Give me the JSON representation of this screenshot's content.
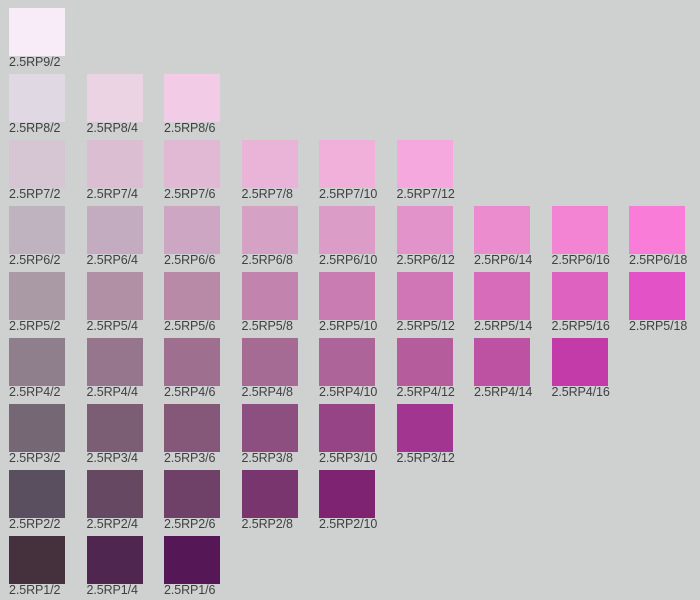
{
  "chips": [
    {
      "label": "2.5RP9/2",
      "value": 9,
      "chroma": 2,
      "color": "#f7ecf7"
    },
    {
      "label": "2.5RP8/2",
      "value": 8,
      "chroma": 2,
      "color": "#e0d9e3"
    },
    {
      "label": "2.5RP8/4",
      "value": 8,
      "chroma": 4,
      "color": "#ecd3e3"
    },
    {
      "label": "2.5RP8/6",
      "value": 8,
      "chroma": 6,
      "color": "#f2cce6"
    },
    {
      "label": "2.5RP7/2",
      "value": 7,
      "chroma": 2,
      "color": "#d6c5d2"
    },
    {
      "label": "2.5RP7/4",
      "value": 7,
      "chroma": 4,
      "color": "#dcbed3"
    },
    {
      "label": "2.5RP7/6",
      "value": 7,
      "chroma": 6,
      "color": "#e1b9d4"
    },
    {
      "label": "2.5RP7/8",
      "value": 7,
      "chroma": 8,
      "color": "#e9b4d7"
    },
    {
      "label": "2.5RP7/10",
      "value": 7,
      "chroma": 10,
      "color": "#f0b0da"
    },
    {
      "label": "2.5RP7/12",
      "value": 7,
      "chroma": 12,
      "color": "#f5a8dd"
    },
    {
      "label": "2.5RP6/2",
      "value": 6,
      "chroma": 2,
      "color": "#bfb3c0"
    },
    {
      "label": "2.5RP6/4",
      "value": 6,
      "chroma": 4,
      "color": "#c4acc0"
    },
    {
      "label": "2.5RP6/6",
      "value": 6,
      "chroma": 6,
      "color": "#cca6c2"
    },
    {
      "label": "2.5RP6/8",
      "value": 6,
      "chroma": 8,
      "color": "#d5a2c6"
    },
    {
      "label": "2.5RP6/10",
      "value": 6,
      "chroma": 10,
      "color": "#db9cc8"
    },
    {
      "label": "2.5RP6/12",
      "value": 6,
      "chroma": 12,
      "color": "#e293ca"
    },
    {
      "label": "2.5RP6/14",
      "value": 6,
      "chroma": 14,
      "color": "#eb8ccf"
    },
    {
      "label": "2.5RP6/16",
      "value": 6,
      "chroma": 16,
      "color": "#f383d3"
    },
    {
      "label": "2.5RP6/18",
      "value": 6,
      "chroma": 18,
      "color": "#f87cd8"
    },
    {
      "label": "2.5RP5/2",
      "value": 5,
      "chroma": 2,
      "color": "#a99aa6"
    },
    {
      "label": "2.5RP5/4",
      "value": 5,
      "chroma": 4,
      "color": "#b190a6"
    },
    {
      "label": "2.5RP5/6",
      "value": 5,
      "chroma": 6,
      "color": "#b88aa8"
    },
    {
      "label": "2.5RP5/8",
      "value": 5,
      "chroma": 8,
      "color": "#c284af"
    },
    {
      "label": "2.5RP5/10",
      "value": 5,
      "chroma": 10,
      "color": "#c97cb1"
    },
    {
      "label": "2.5RP5/12",
      "value": 5,
      "chroma": 12,
      "color": "#d075b6"
    },
    {
      "label": "2.5RP5/14",
      "value": 5,
      "chroma": 14,
      "color": "#d76cbb"
    },
    {
      "label": "2.5RP5/16",
      "value": 5,
      "chroma": 16,
      "color": "#de62bf"
    },
    {
      "label": "2.5RP5/18",
      "value": 5,
      "chroma": 18,
      "color": "#e352c6"
    },
    {
      "label": "2.5RP4/2",
      "value": 4,
      "chroma": 2,
      "color": "#8f7e8b"
    },
    {
      "label": "2.5RP4/4",
      "value": 4,
      "chroma": 4,
      "color": "#96768c"
    },
    {
      "label": "2.5RP4/6",
      "value": 4,
      "chroma": 6,
      "color": "#9e6f8f"
    },
    {
      "label": "2.5RP4/8",
      "value": 4,
      "chroma": 8,
      "color": "#a66b95"
    },
    {
      "label": "2.5RP4/10",
      "value": 4,
      "chroma": 10,
      "color": "#ad6498"
    },
    {
      "label": "2.5RP4/12",
      "value": 4,
      "chroma": 12,
      "color": "#b45c9c"
    },
    {
      "label": "2.5RP4/14",
      "value": 4,
      "chroma": 14,
      "color": "#bd52a3"
    },
    {
      "label": "2.5RP4/16",
      "value": 4,
      "chroma": 16,
      "color": "#c33aa9"
    },
    {
      "label": "2.5RP3/2",
      "value": 3,
      "chroma": 2,
      "color": "#756874"
    },
    {
      "label": "2.5RP3/4",
      "value": 3,
      "chroma": 4,
      "color": "#7c5e74"
    },
    {
      "label": "2.5RP3/6",
      "value": 3,
      "chroma": 6,
      "color": "#855879"
    },
    {
      "label": "2.5RP3/8",
      "value": 3,
      "chroma": 8,
      "color": "#8d4f7f"
    },
    {
      "label": "2.5RP3/10",
      "value": 3,
      "chroma": 10,
      "color": "#964485"
    },
    {
      "label": "2.5RP3/12",
      "value": 3,
      "chroma": 12,
      "color": "#a13590"
    },
    {
      "label": "2.5RP2/2",
      "value": 2,
      "chroma": 2,
      "color": "#5a4f5e"
    },
    {
      "label": "2.5RP2/4",
      "value": 2,
      "chroma": 4,
      "color": "#674863"
    },
    {
      "label": "2.5RP2/6",
      "value": 2,
      "chroma": 6,
      "color": "#6f4068"
    },
    {
      "label": "2.5RP2/8",
      "value": 2,
      "chroma": 8,
      "color": "#78356e"
    },
    {
      "label": "2.5RP2/10",
      "value": 2,
      "chroma": 10,
      "color": "#7e2272"
    },
    {
      "label": "2.5RP1/2",
      "value": 1,
      "chroma": 2,
      "color": "#45313e"
    },
    {
      "label": "2.5RP1/4",
      "value": 1,
      "chroma": 4,
      "color": "#4f2650"
    },
    {
      "label": "2.5RP1/6",
      "value": 1,
      "chroma": 6,
      "color": "#561756"
    }
  ]
}
